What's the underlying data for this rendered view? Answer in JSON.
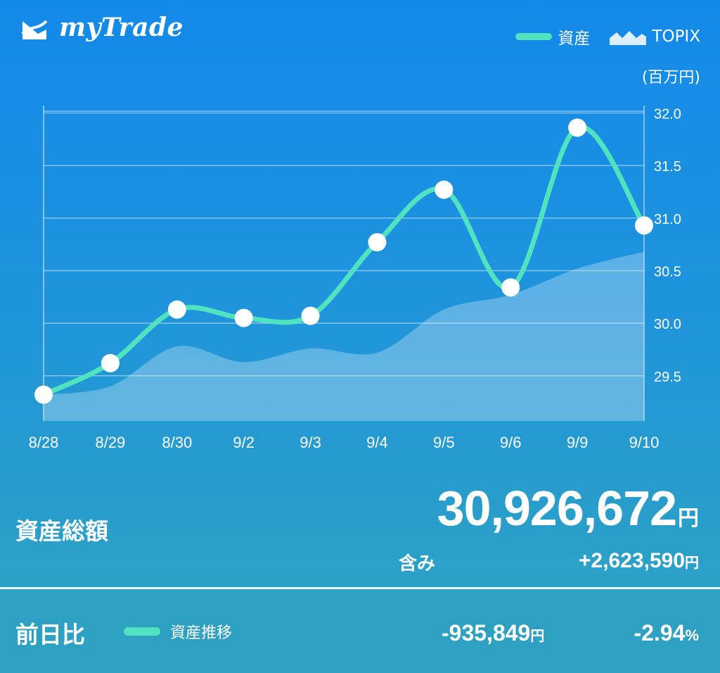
{
  "header": {
    "app_name": "myTrade",
    "legend": [
      {
        "label": "資産",
        "icon": "line-swatch-icon"
      },
      {
        "label": "TOPIX",
        "icon": "area-swatch-icon"
      }
    ],
    "unit": "(百万円)"
  },
  "chart_data": {
    "type": "line",
    "categories": [
      "8/28",
      "8/29",
      "8/30",
      "9/2",
      "9/3",
      "9/4",
      "9/5",
      "9/6",
      "9/9",
      "9/10"
    ],
    "series": [
      {
        "name": "資産",
        "values": [
          29.32,
          29.62,
          30.13,
          30.05,
          30.07,
          30.77,
          31.27,
          30.34,
          31.86,
          30.93
        ],
        "color": "#4fe3bf"
      },
      {
        "name": "TOPIX",
        "values": [
          29.32,
          29.4,
          29.78,
          29.63,
          29.76,
          29.72,
          30.13,
          30.27,
          30.52,
          30.68
        ],
        "color": "#ffffff"
      }
    ],
    "y_ticks": [
      "29.5",
      "30.0",
      "30.5",
      "31.0",
      "31.5",
      "32.0"
    ],
    "ylim": [
      29.07,
      32.07
    ],
    "grid": true,
    "legend_position": "top-right",
    "title": "",
    "xlabel": "",
    "ylabel": "(百万円)"
  },
  "summary": {
    "total_label": "資産総額",
    "total_value": "30,926,672",
    "yen": "円",
    "sub_label": "含み",
    "sub_value": "+2,623,590",
    "sub_unit": "円"
  },
  "footer": {
    "label": "前日比",
    "legend_label": "資産推移",
    "change_value": "-935,849",
    "change_unit": "円",
    "change_pct": "-2.94",
    "pct_unit": "%"
  },
  "colors": {
    "accent": "#4fe3bf",
    "background_top": "#1389ea",
    "background_bottom": "#2ea3c3"
  }
}
